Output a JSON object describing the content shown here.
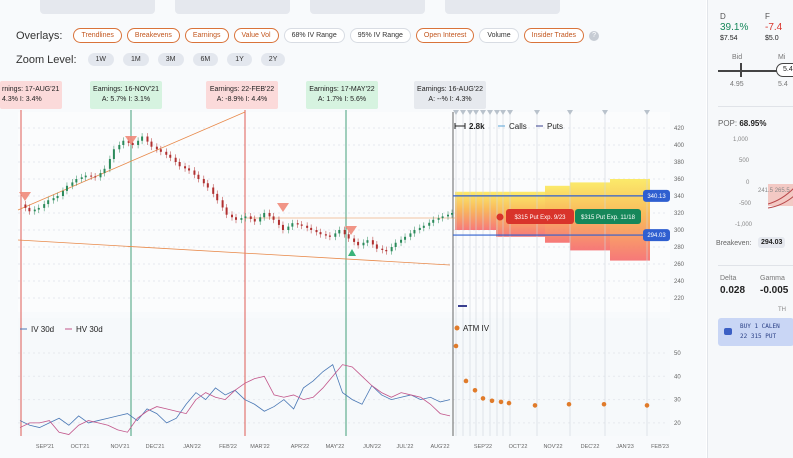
{
  "overlays": {
    "label": "Overlays:",
    "items": [
      {
        "label": "Trendlines",
        "on": true
      },
      {
        "label": "Breakevens",
        "on": true
      },
      {
        "label": "Earnings",
        "on": true
      },
      {
        "label": "Value Vol",
        "on": true
      },
      {
        "label": "68% IV Range",
        "on": false
      },
      {
        "label": "95% IV Range",
        "on": false
      },
      {
        "label": "Open Interest",
        "on": true
      },
      {
        "label": "Volume",
        "on": false
      },
      {
        "label": "Insider Trades",
        "on": true
      }
    ],
    "help": "?"
  },
  "zoom": {
    "label": "Zoom Level:",
    "items": [
      "1W",
      "1M",
      "3M",
      "6M",
      "1Y",
      "2Y"
    ]
  },
  "earnings": [
    {
      "title": "rnings: 17-AUG'21",
      "stats": "4.3%   I: 3.4%",
      "color": "red"
    },
    {
      "title": "Earnings: 16-NOV'21",
      "stats": "A: 5.7%   I: 3.1%",
      "color": "green"
    },
    {
      "title": "Earnings: 22-FEB'22",
      "stats": "A: -8.9%   I: 4.4%",
      "color": "red"
    },
    {
      "title": "Earnings: 17-MAY'22",
      "stats": "A: 1.7%   I: 5.6%",
      "color": "green"
    },
    {
      "title": "Earnings: 16-AUG'22",
      "stats": "A: --%   I: 4.3%",
      "color": "gray"
    }
  ],
  "legend": {
    "oi": "2.8k",
    "calls": "Calls",
    "puts": "Puts",
    "iv30": "IV 30d",
    "hv30": "HV 30d",
    "atm": "ATM IV"
  },
  "tags": {
    "put1": "$315 Put Exp. 9/23",
    "put2": "$315 Put Exp. 11/18",
    "upper": "340.13",
    "lower": "294.03"
  },
  "colors": {
    "iv": "#4a78b5",
    "hv": "#c2558a",
    "atm": "#e07b2a",
    "breakeven": "#2f5fd0",
    "red": "#d9342b",
    "green": "#16875a"
  },
  "chart_data": {
    "type": "line",
    "x_ticks": [
      "SEP'21",
      "OCT'21",
      "NOV'21",
      "DEC'21",
      "JAN'22",
      "FEB'22",
      "MAR'22",
      "APR'22",
      "MAY'22",
      "JUN'22",
      "JUL'22",
      "AUG'22",
      "SEP'22",
      "OCT'22",
      "NOV'22",
      "DEC'22",
      "JAN'23",
      "FEB'23"
    ],
    "price_ticks": [
      420,
      400,
      380,
      360,
      340,
      320,
      300,
      280,
      260,
      240,
      220
    ],
    "iv_ticks": [
      50,
      40,
      30,
      20
    ],
    "price": [
      330,
      322,
      326,
      335,
      340,
      352,
      360,
      364,
      362,
      372,
      395,
      405,
      400,
      410,
      398,
      392,
      385,
      375,
      370,
      360,
      350,
      335,
      318,
      312,
      316,
      310,
      320,
      312,
      300,
      308,
      305,
      300,
      295,
      292,
      300,
      290,
      282,
      288,
      278,
      275,
      285,
      292,
      300,
      305,
      312,
      316,
      320
    ],
    "iv30": [
      21,
      19,
      18,
      20,
      22,
      19,
      23,
      20,
      21,
      22,
      23,
      24,
      21,
      26,
      24,
      20,
      22,
      28,
      33,
      30,
      35,
      32,
      34,
      30,
      28,
      25,
      27,
      30,
      26,
      35,
      38,
      42,
      45,
      33,
      30,
      28,
      36,
      32,
      30,
      31,
      32,
      30,
      31,
      29,
      30
    ],
    "hv30": [
      18,
      20,
      20,
      21,
      16,
      15,
      19,
      21,
      20,
      19,
      17,
      16,
      22,
      25,
      27,
      26,
      25,
      24,
      30,
      33,
      31,
      30,
      34,
      37,
      39,
      40,
      32,
      31,
      32,
      30,
      31,
      35,
      40,
      45,
      44,
      40,
      36,
      33,
      31,
      33,
      32,
      31,
      28,
      24,
      23
    ],
    "atm_iv": [
      53,
      38,
      34,
      30.5,
      29.5,
      29,
      28.5,
      27.5,
      28,
      28,
      27.5
    ]
  },
  "right": {
    "d": "D",
    "f": "F",
    "d_pct": "39.1%",
    "f_pct": "-7.4",
    "d_val": "$7.54",
    "f_val": "$5.0",
    "bid": "Bid",
    "mid": "Mi",
    "bid_val": "4.95",
    "mid_val": "5.4",
    "mid_box": "5.4",
    "pop_label": "POP:",
    "pop": "68.95%",
    "y_ticks": [
      "1,000",
      "500",
      "0",
      "-500",
      "-1,000"
    ],
    "strike1": "241.5",
    "strike2": "265.5",
    "be_label": "Breakeven:",
    "be": "294.03",
    "delta": "Delta",
    "gamma": "Gamma",
    "delta_val": "0.028",
    "gamma_val": "-0.005",
    "th": "TH",
    "order1": "BUY 1 CALEN",
    "order2": "22 315 PUT"
  }
}
